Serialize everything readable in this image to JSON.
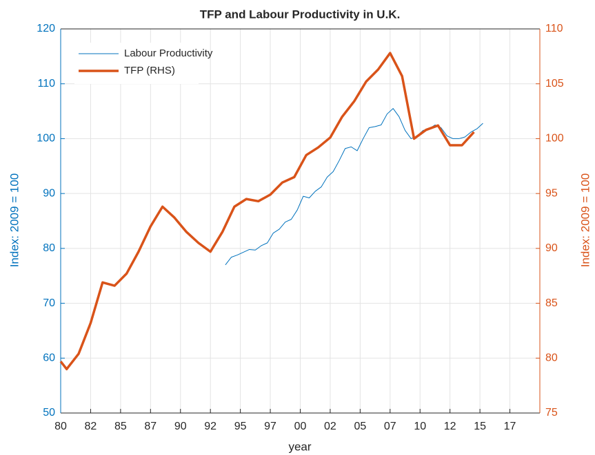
{
  "chart_data": {
    "type": "line",
    "title": "TFP and Labour Productivity in U.K.",
    "xlabel": "year",
    "ylabel": "Index: 2009 = 100",
    "y2label": "Index: 2009 = 100",
    "xlim": [
      1980,
      2020
    ],
    "xticks": [
      {
        "value": 1980,
        "label": "80"
      },
      {
        "value": 1982.5,
        "label": "82"
      },
      {
        "value": 1985,
        "label": "85"
      },
      {
        "value": 1987.5,
        "label": "87"
      },
      {
        "value": 1990,
        "label": "90"
      },
      {
        "value": 1992.5,
        "label": "92"
      },
      {
        "value": 1995,
        "label": "95"
      },
      {
        "value": 1997.5,
        "label": "97"
      },
      {
        "value": 2000,
        "label": "00"
      },
      {
        "value": 2002.5,
        "label": "02"
      },
      {
        "value": 2005,
        "label": "05"
      },
      {
        "value": 2007.5,
        "label": "07"
      },
      {
        "value": 2010,
        "label": "10"
      },
      {
        "value": 2012.5,
        "label": "12"
      },
      {
        "value": 2015,
        "label": "15"
      },
      {
        "value": 2017.5,
        "label": "17"
      }
    ],
    "ylim": [
      50,
      120
    ],
    "yticks": [
      50,
      60,
      70,
      80,
      90,
      100,
      110,
      120
    ],
    "y2lim": [
      75,
      110
    ],
    "y2ticks": [
      75,
      80,
      85,
      90,
      95,
      100,
      105,
      110
    ],
    "ycolor": "#0072bd",
    "y2color": "#d95319",
    "grid": true,
    "legend": "northwest",
    "series": [
      {
        "name": "Labour Productivity",
        "color": "#0072bd",
        "width": 1,
        "axis": "y",
        "x": [
          1993.75,
          1994.25,
          1994.75,
          1995.25,
          1995.75,
          1996.25,
          1996.75,
          1997.25,
          1997.75,
          1998.25,
          1998.75,
          1999.25,
          1999.75,
          2000.25,
          2000.75,
          2001.25,
          2001.75,
          2002.25,
          2002.75,
          2003.25,
          2003.75,
          2004.25,
          2004.75,
          2005.25,
          2005.75,
          2006.25,
          2006.75,
          2007.25,
          2007.75,
          2008.25,
          2008.75,
          2009.25,
          2009.75,
          2010.25,
          2010.75,
          2011.25,
          2011.75,
          2012.25,
          2012.75,
          2013.25,
          2013.75,
          2014.25,
          2014.75,
          2015.25
        ],
        "values": [
          77.0,
          78.4,
          78.8,
          79.3,
          79.8,
          79.7,
          80.5,
          81.0,
          82.8,
          83.5,
          84.8,
          85.3,
          87.0,
          89.5,
          89.2,
          90.4,
          91.2,
          93.0,
          94.0,
          96.0,
          98.2,
          98.5,
          97.8,
          100.0,
          102.0,
          102.2,
          102.5,
          104.5,
          105.5,
          104.0,
          101.5,
          100.0,
          100.5,
          101.5,
          101.8,
          102.5,
          102.0,
          100.5,
          100.0,
          100.0,
          100.3,
          101.2,
          101.8,
          102.8
        ]
      },
      {
        "name": "TFP (RHS)",
        "color": "#d95319",
        "width": 3.5,
        "axis": "y2",
        "x": [
          1980,
          1980.5,
          1981.5,
          1982.5,
          1983.5,
          1984.5,
          1985.5,
          1986.5,
          1987.5,
          1988.5,
          1989.5,
          1990.5,
          1991.5,
          1992.5,
          1993.5,
          1994.5,
          1995.5,
          1996.5,
          1997.5,
          1998.5,
          1999.5,
          2000.5,
          2001.5,
          2002.5,
          2003.5,
          2004.5,
          2005.5,
          2006.5,
          2007.5,
          2008.5,
          2009.5,
          2010.5,
          2011.5,
          2012.5,
          2013.5,
          2014.5
        ],
        "values": [
          79.7,
          79.0,
          80.4,
          83.2,
          86.9,
          86.6,
          87.7,
          89.7,
          92.0,
          93.8,
          92.8,
          91.5,
          90.5,
          89.7,
          91.5,
          93.8,
          94.5,
          94.3,
          94.9,
          96.0,
          96.5,
          98.5,
          99.2,
          100.1,
          102.0,
          103.4,
          105.2,
          106.3,
          107.8,
          105.7,
          100.0,
          100.8,
          101.2,
          99.4,
          99.4,
          100.6
        ]
      }
    ]
  }
}
